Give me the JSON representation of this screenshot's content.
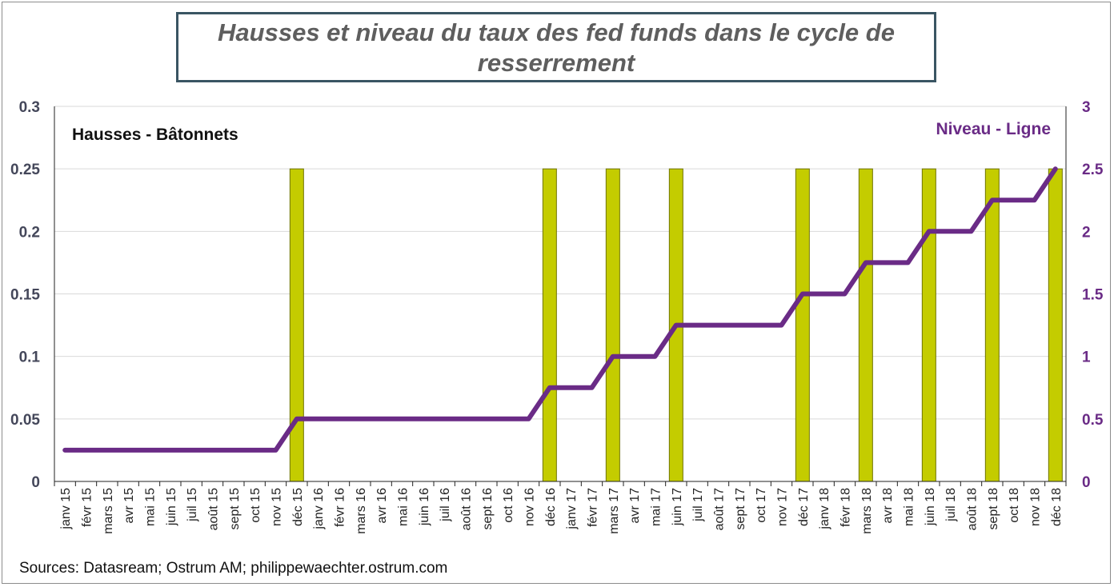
{
  "title": "Hausses et niveau du taux des fed funds dans le cycle de resserrement",
  "source": "Sources: Datasream; Ostrum AM;  philippewaechter.ostrum.com",
  "colors": {
    "bars": "#c4cc00",
    "bar_border": "#6f7300",
    "line": "#6a2b86",
    "right_axis": "#6a2b86",
    "left_axis": "#44475a",
    "grid": "#d9d9d9"
  },
  "chart_data": {
    "type": "bar+line",
    "title": "Hausses et niveau du taux des fed funds dans le cycle de resserrement",
    "categories": [
      "janv 15",
      "févr 15",
      "mars 15",
      "avr 15",
      "mai 15",
      "juin 15",
      "juil 15",
      "août 15",
      "sept 15",
      "oct 15",
      "nov 15",
      "déc 15",
      "janv 16",
      "févr 16",
      "mars 16",
      "avr 16",
      "mai 16",
      "juin 16",
      "juil 16",
      "août 16",
      "sept 16",
      "oct 16",
      "nov 16",
      "déc 16",
      "janv 17",
      "févr 17",
      "mars 17",
      "avr 17",
      "mai 17",
      "juin 17",
      "juil 17",
      "août 17",
      "sept 17",
      "oct 17",
      "nov 17",
      "déc 17",
      "janv 18",
      "févr 18",
      "mars 18",
      "avr 18",
      "mai 18",
      "juin 18",
      "juil 18",
      "août 18",
      "sept 18",
      "oct 18",
      "nov 18",
      "déc 18"
    ],
    "series": [
      {
        "name": "Hausses - Bâtonnets",
        "type": "bar",
        "axis": "left",
        "values": [
          0,
          0,
          0,
          0,
          0,
          0,
          0,
          0,
          0,
          0,
          0,
          0.25,
          0,
          0,
          0,
          0,
          0,
          0,
          0,
          0,
          0,
          0,
          0,
          0.25,
          0,
          0,
          0.25,
          0,
          0,
          0.25,
          0,
          0,
          0,
          0,
          0,
          0.25,
          0,
          0,
          0.25,
          0,
          0,
          0.25,
          0,
          0,
          0.25,
          0,
          0,
          0.25
        ]
      },
      {
        "name": "Niveau - Ligne",
        "type": "line",
        "axis": "right",
        "values": [
          0.25,
          0.25,
          0.25,
          0.25,
          0.25,
          0.25,
          0.25,
          0.25,
          0.25,
          0.25,
          0.25,
          0.5,
          0.5,
          0.5,
          0.5,
          0.5,
          0.5,
          0.5,
          0.5,
          0.5,
          0.5,
          0.5,
          0.5,
          0.75,
          0.75,
          0.75,
          1.0,
          1.0,
          1.0,
          1.25,
          1.25,
          1.25,
          1.25,
          1.25,
          1.25,
          1.5,
          1.5,
          1.5,
          1.75,
          1.75,
          1.75,
          2.0,
          2.0,
          2.0,
          2.25,
          2.25,
          2.25,
          2.5
        ]
      }
    ],
    "y_left": {
      "ylim": [
        0,
        0.3
      ],
      "ticks": [
        "0",
        "0.05",
        "0.1",
        "0.15",
        "0.2",
        "0.25",
        "0.3"
      ],
      "tick_values": [
        0,
        0.05,
        0.1,
        0.15,
        0.2,
        0.25,
        0.3
      ]
    },
    "y_right": {
      "ylim": [
        0,
        3
      ],
      "ticks": [
        "0",
        "0.5",
        "1",
        "1.5",
        "2",
        "2.5",
        "3"
      ],
      "tick_values": [
        0,
        0.5,
        1,
        1.5,
        2,
        2.5,
        3
      ]
    },
    "grid": true,
    "legend": "inside-top (left: bars, right: line)"
  }
}
